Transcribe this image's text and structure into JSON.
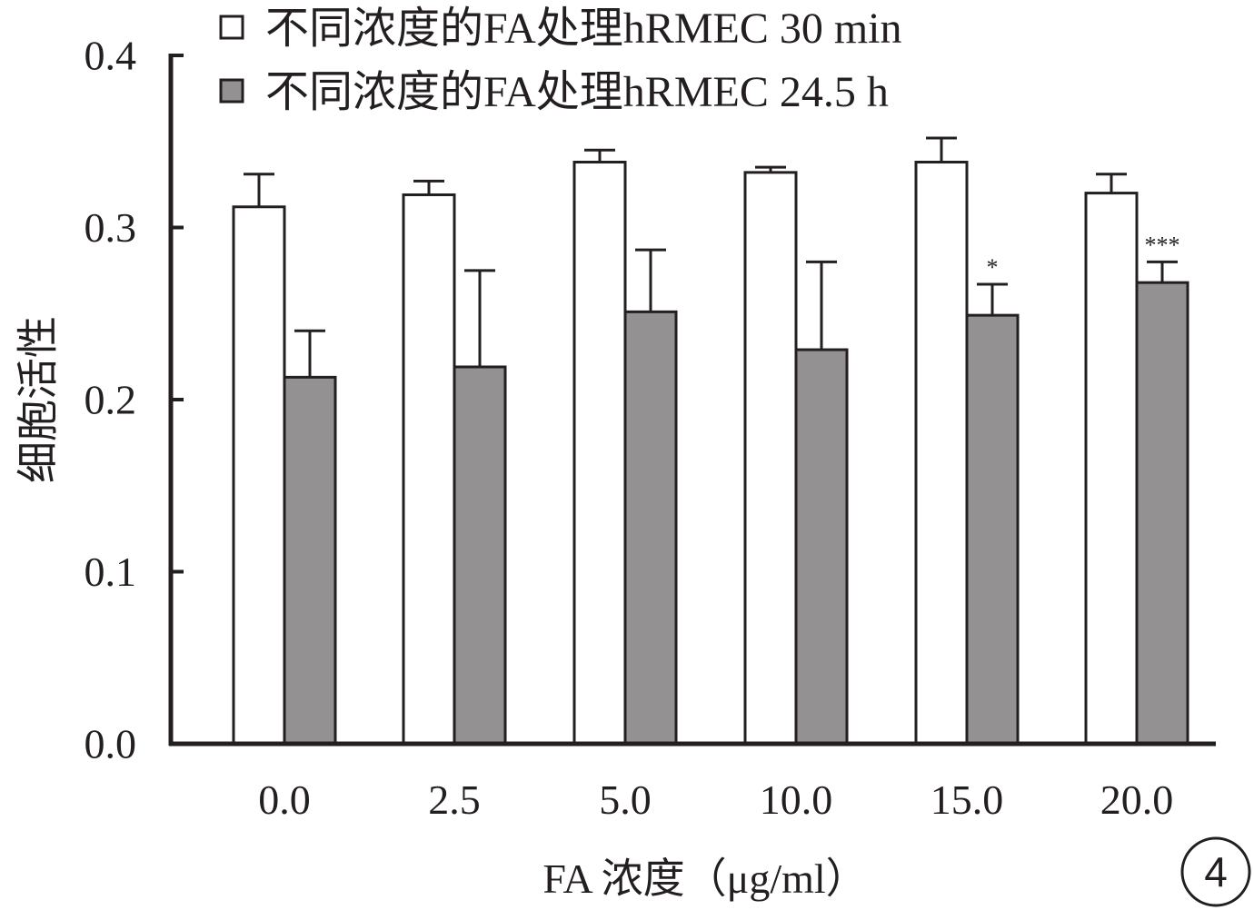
{
  "chart_data": {
    "type": "bar",
    "title": "",
    "xlabel": "FA 浓度（μg/ml）",
    "ylabel": "细胞活性",
    "ylim": [
      0,
      0.4
    ],
    "yticks": [
      "0.0",
      "0.1",
      "0.2",
      "0.3",
      "0.4"
    ],
    "categories": [
      "0.0",
      "2.5",
      "5.0",
      "10.0",
      "15.0",
      "20.0"
    ],
    "series": [
      {
        "name": "不同浓度的FA处理hRMEC 30 min",
        "color": "#ffffff",
        "values": [
          0.312,
          0.319,
          0.338,
          0.332,
          0.338,
          0.32
        ],
        "errors": [
          0.019,
          0.008,
          0.007,
          0.003,
          0.014,
          0.011
        ]
      },
      {
        "name": "不同浓度的FA处理hRMEC 24.5 h",
        "color": "#939191",
        "values": [
          0.213,
          0.219,
          0.251,
          0.229,
          0.249,
          0.268
        ],
        "errors": [
          0.027,
          0.056,
          0.036,
          0.051,
          0.018,
          0.012
        ]
      }
    ],
    "annotations": [
      {
        "series": 1,
        "category": 4,
        "text": "*"
      },
      {
        "series": 1,
        "category": 5,
        "text": "***"
      }
    ],
    "legend_position": "top",
    "grid": false
  },
  "panel_label": "4"
}
